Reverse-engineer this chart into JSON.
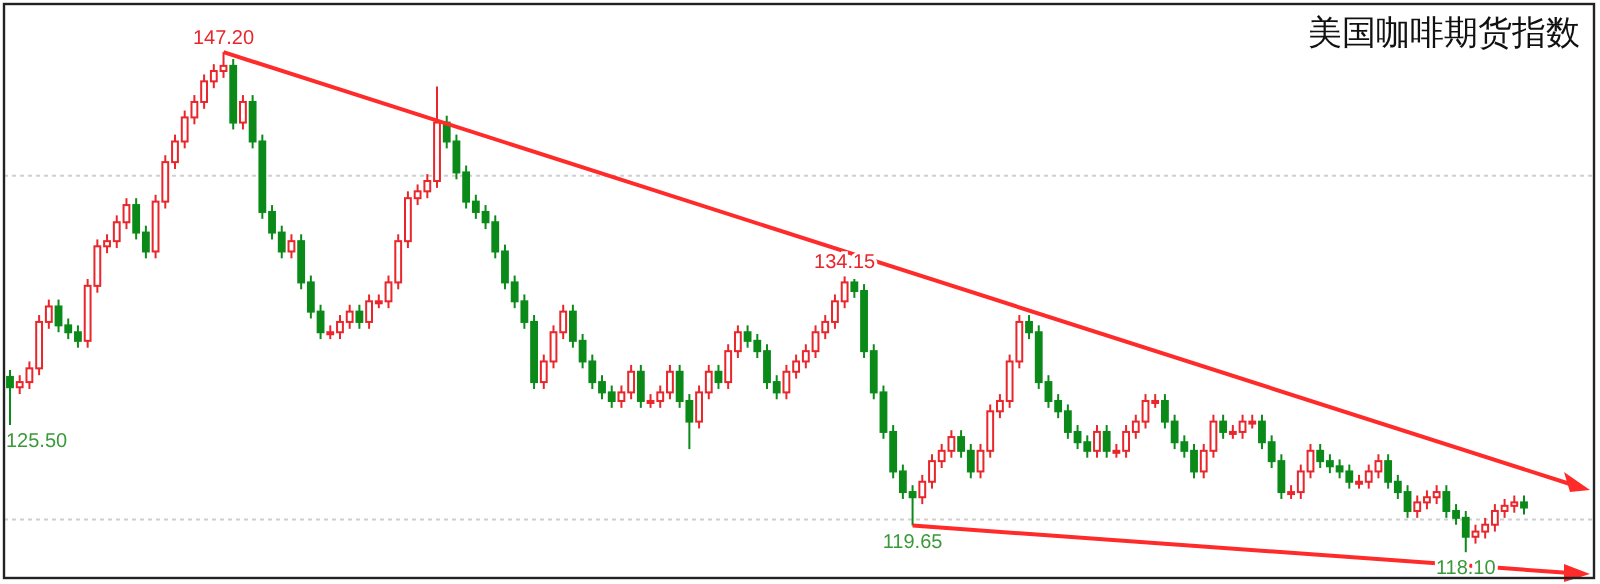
{
  "chart_data": {
    "type": "candlestick",
    "title": "美国咖啡期货指数",
    "categories": [
      null,
      null,
      null,
      null,
      null,
      null,
      null,
      null,
      null,
      null,
      null,
      null,
      null,
      null,
      null,
      null,
      null,
      null,
      null,
      null,
      null,
      null,
      null,
      null,
      null,
      null,
      null,
      null,
      null,
      null,
      null,
      null,
      null,
      null,
      null,
      null,
      null,
      null,
      null,
      null,
      null,
      null,
      null,
      null,
      null,
      null,
      null,
      null,
      null,
      null,
      null,
      null,
      null,
      null,
      null,
      null,
      null,
      null,
      null,
      null,
      null,
      null,
      null,
      null,
      null,
      null,
      null,
      null,
      null,
      null,
      null,
      null,
      null,
      null,
      null,
      null,
      null,
      null,
      null,
      null,
      null,
      null,
      null,
      null,
      null,
      null,
      null,
      null,
      null,
      null,
      null,
      null,
      null,
      null,
      null,
      null,
      null,
      null,
      null,
      null,
      null,
      null,
      null,
      null,
      null,
      null,
      null,
      null,
      null,
      null,
      null,
      null,
      null,
      null,
      null,
      null,
      null,
      null,
      null,
      null,
      null,
      null,
      null,
      null,
      null,
      null,
      null,
      null,
      null,
      null,
      null,
      null,
      null,
      null,
      null,
      null,
      null,
      null,
      null,
      null,
      null,
      null,
      null,
      null,
      null,
      null,
      null,
      null,
      null,
      null,
      null,
      null,
      null,
      null,
      null,
      null,
      null
    ],
    "ohlc": [
      [
        128.3,
        128.7,
        125.5,
        127.7
      ],
      [
        127.7,
        128.4,
        127.3,
        128.0
      ],
      [
        128.0,
        129.2,
        127.6,
        128.8
      ],
      [
        128.8,
        131.9,
        128.4,
        131.5
      ],
      [
        131.5,
        132.8,
        131.1,
        132.4
      ],
      [
        132.4,
        132.8,
        130.9,
        131.3
      ],
      [
        131.3,
        131.7,
        130.5,
        130.9
      ],
      [
        130.9,
        131.3,
        130.0,
        130.4
      ],
      [
        130.4,
        134.0,
        130.0,
        133.6
      ],
      [
        133.6,
        136.3,
        133.2,
        135.9
      ],
      [
        135.9,
        136.6,
        135.5,
        136.2
      ],
      [
        136.2,
        137.7,
        135.8,
        137.3
      ],
      [
        137.3,
        138.7,
        136.9,
        138.3
      ],
      [
        138.3,
        138.7,
        136.3,
        136.7
      ],
      [
        136.7,
        137.1,
        135.2,
        135.6
      ],
      [
        135.6,
        138.9,
        135.2,
        138.5
      ],
      [
        138.5,
        141.2,
        138.1,
        140.8
      ],
      [
        140.8,
        142.4,
        140.4,
        142.0
      ],
      [
        142.0,
        143.8,
        141.6,
        143.4
      ],
      [
        143.4,
        144.7,
        143.0,
        144.3
      ],
      [
        144.3,
        145.9,
        143.9,
        145.5
      ],
      [
        145.5,
        146.5,
        145.1,
        146.1
      ],
      [
        146.1,
        147.2,
        145.7,
        146.4
      ],
      [
        146.4,
        146.8,
        142.7,
        143.1
      ],
      [
        143.1,
        144.7,
        142.7,
        144.3
      ],
      [
        144.3,
        144.7,
        141.6,
        142.0
      ],
      [
        142.0,
        142.4,
        137.5,
        137.9
      ],
      [
        137.9,
        138.3,
        136.3,
        136.7
      ],
      [
        136.7,
        137.1,
        135.2,
        135.6
      ],
      [
        135.6,
        136.6,
        135.2,
        136.2
      ],
      [
        136.2,
        136.6,
        133.4,
        133.8
      ],
      [
        133.8,
        134.2,
        131.7,
        132.1
      ],
      [
        132.1,
        132.5,
        130.5,
        130.9
      ],
      [
        130.9,
        131.3,
        130.5,
        130.9
      ],
      [
        130.9,
        131.9,
        130.5,
        131.5
      ],
      [
        131.5,
        132.5,
        131.1,
        132.1
      ],
      [
        132.1,
        132.5,
        131.1,
        131.5
      ],
      [
        131.5,
        133.1,
        131.1,
        132.7
      ],
      [
        132.7,
        133.1,
        132.3,
        132.7
      ],
      [
        132.7,
        134.2,
        132.3,
        133.8
      ],
      [
        133.8,
        136.6,
        133.4,
        136.2
      ],
      [
        136.2,
        139.1,
        135.8,
        138.7
      ],
      [
        138.7,
        139.5,
        138.3,
        139.1
      ],
      [
        139.1,
        140.1,
        138.7,
        139.7
      ],
      [
        139.7,
        145.2,
        139.3,
        143.1
      ],
      [
        143.1,
        143.5,
        141.6,
        142.0
      ],
      [
        142.0,
        142.4,
        139.8,
        140.2
      ],
      [
        140.2,
        140.6,
        138.1,
        138.5
      ],
      [
        138.5,
        138.9,
        137.5,
        137.9
      ],
      [
        137.9,
        138.3,
        136.9,
        137.3
      ],
      [
        137.3,
        137.7,
        135.2,
        135.6
      ],
      [
        135.6,
        136.0,
        133.4,
        133.8
      ],
      [
        133.8,
        134.2,
        132.3,
        132.7
      ],
      [
        132.7,
        133.1,
        131.1,
        131.5
      ],
      [
        131.5,
        131.9,
        127.6,
        128.0
      ],
      [
        128.0,
        129.6,
        127.6,
        129.2
      ],
      [
        129.2,
        131.3,
        128.8,
        130.9
      ],
      [
        130.9,
        132.5,
        130.5,
        132.1
      ],
      [
        132.1,
        132.5,
        130.0,
        130.4
      ],
      [
        130.4,
        130.8,
        128.8,
        129.2
      ],
      [
        129.2,
        129.6,
        127.6,
        128.0
      ],
      [
        128.0,
        128.4,
        127.0,
        127.4
      ],
      [
        127.4,
        127.8,
        126.5,
        126.9
      ],
      [
        126.9,
        127.8,
        126.5,
        127.4
      ],
      [
        127.4,
        129.0,
        127.0,
        128.6
      ],
      [
        128.6,
        129.0,
        126.5,
        126.9
      ],
      [
        126.9,
        127.3,
        126.5,
        126.9
      ],
      [
        126.9,
        127.8,
        126.5,
        127.4
      ],
      [
        127.4,
        129.0,
        127.0,
        128.6
      ],
      [
        128.6,
        129.0,
        126.5,
        126.9
      ],
      [
        126.9,
        127.3,
        124.1,
        125.7
      ],
      [
        125.7,
        127.8,
        125.3,
        127.4
      ],
      [
        127.4,
        129.0,
        127.0,
        128.6
      ],
      [
        128.6,
        129.0,
        127.6,
        128.0
      ],
      [
        128.0,
        130.2,
        127.6,
        129.8
      ],
      [
        129.8,
        131.3,
        129.4,
        130.9
      ],
      [
        130.9,
        131.3,
        130.0,
        130.4
      ],
      [
        130.4,
        130.8,
        129.4,
        129.8
      ],
      [
        129.8,
        130.2,
        127.6,
        128.0
      ],
      [
        128.0,
        128.4,
        127.0,
        127.4
      ],
      [
        127.4,
        129.0,
        127.0,
        128.6
      ],
      [
        128.6,
        129.6,
        128.2,
        129.2
      ],
      [
        129.2,
        130.2,
        128.8,
        129.8
      ],
      [
        129.8,
        131.3,
        129.4,
        130.9
      ],
      [
        130.9,
        131.9,
        130.5,
        131.5
      ],
      [
        131.5,
        133.1,
        131.1,
        132.7
      ],
      [
        132.7,
        134.15,
        132.3,
        133.8
      ],
      [
        133.8,
        134.0,
        132.9,
        133.3
      ],
      [
        133.3,
        133.7,
        129.4,
        129.8
      ],
      [
        129.8,
        130.2,
        127.0,
        127.4
      ],
      [
        127.4,
        127.8,
        124.7,
        125.1
      ],
      [
        125.1,
        125.5,
        122.4,
        122.8
      ],
      [
        122.8,
        123.2,
        121.2,
        121.6
      ],
      [
        121.6,
        122.0,
        119.65,
        121.3
      ],
      [
        121.3,
        122.6,
        120.9,
        122.2
      ],
      [
        122.2,
        123.8,
        121.8,
        123.4
      ],
      [
        123.4,
        124.4,
        123.0,
        124.0
      ],
      [
        124.0,
        125.2,
        123.6,
        124.8
      ],
      [
        124.8,
        125.2,
        123.6,
        124.0
      ],
      [
        124.0,
        124.4,
        122.4,
        122.8
      ],
      [
        122.8,
        124.4,
        122.4,
        124.0
      ],
      [
        124.0,
        126.7,
        123.6,
        126.3
      ],
      [
        126.3,
        127.3,
        125.9,
        126.9
      ],
      [
        126.9,
        129.6,
        126.5,
        129.2
      ],
      [
        129.2,
        131.9,
        128.8,
        131.5
      ],
      [
        131.5,
        131.9,
        130.5,
        130.9
      ],
      [
        130.9,
        131.3,
        127.6,
        128.0
      ],
      [
        128.0,
        128.4,
        126.5,
        126.9
      ],
      [
        126.9,
        127.3,
        125.9,
        126.3
      ],
      [
        126.3,
        126.7,
        124.7,
        125.1
      ],
      [
        125.1,
        125.5,
        124.1,
        124.5
      ],
      [
        124.5,
        124.9,
        123.6,
        124.0
      ],
      [
        124.0,
        125.5,
        123.6,
        125.1
      ],
      [
        125.1,
        125.5,
        123.6,
        124.0
      ],
      [
        124.0,
        124.4,
        123.6,
        124.0
      ],
      [
        124.0,
        125.5,
        123.6,
        125.1
      ],
      [
        125.1,
        126.1,
        124.7,
        125.7
      ],
      [
        125.7,
        127.3,
        125.3,
        126.9
      ],
      [
        126.9,
        127.3,
        126.5,
        126.9
      ],
      [
        126.9,
        127.3,
        125.3,
        125.7
      ],
      [
        125.7,
        126.1,
        124.1,
        124.5
      ],
      [
        124.5,
        124.9,
        123.6,
        124.0
      ],
      [
        124.0,
        124.4,
        122.4,
        122.8
      ],
      [
        122.8,
        124.4,
        122.4,
        124.0
      ],
      [
        124.0,
        126.1,
        123.6,
        125.7
      ],
      [
        125.7,
        126.1,
        124.7,
        125.1
      ],
      [
        125.1,
        125.5,
        124.7,
        125.1
      ],
      [
        125.1,
        126.1,
        124.7,
        125.7
      ],
      [
        125.7,
        126.1,
        125.3,
        125.7
      ],
      [
        125.7,
        126.1,
        124.1,
        124.5
      ],
      [
        124.5,
        124.9,
        123.0,
        123.4
      ],
      [
        123.4,
        123.8,
        121.2,
        121.6
      ],
      [
        121.6,
        122.0,
        121.2,
        121.6
      ],
      [
        121.6,
        123.2,
        121.2,
        122.8
      ],
      [
        122.8,
        124.4,
        122.4,
        124.0
      ],
      [
        124.0,
        124.4,
        123.0,
        123.4
      ],
      [
        123.4,
        123.8,
        122.7,
        123.1
      ],
      [
        123.1,
        123.5,
        122.4,
        122.8
      ],
      [
        122.8,
        123.2,
        121.8,
        122.2
      ],
      [
        122.2,
        122.6,
        121.8,
        122.2
      ],
      [
        122.2,
        123.2,
        121.8,
        122.8
      ],
      [
        122.8,
        123.8,
        122.4,
        123.4
      ],
      [
        123.4,
        123.8,
        121.8,
        122.2
      ],
      [
        122.2,
        122.6,
        121.2,
        121.6
      ],
      [
        121.6,
        122.0,
        120.1,
        120.5
      ],
      [
        120.5,
        121.4,
        120.1,
        121.0
      ],
      [
        121.0,
        121.7,
        120.6,
        121.3
      ],
      [
        121.3,
        122.0,
        120.9,
        121.6
      ],
      [
        121.6,
        122.0,
        120.1,
        120.5
      ],
      [
        120.5,
        120.9,
        119.7,
        120.1
      ],
      [
        120.1,
        120.5,
        118.1,
        119.0
      ],
      [
        119.0,
        119.7,
        118.6,
        119.3
      ],
      [
        119.3,
        120.1,
        118.9,
        119.7
      ],
      [
        119.7,
        120.9,
        119.3,
        120.5
      ],
      [
        120.5,
        121.2,
        120.1,
        120.8
      ],
      [
        120.8,
        121.4,
        120.4,
        121.0
      ],
      [
        121.0,
        121.4,
        120.3,
        120.7
      ]
    ],
    "colors": [
      "#0b8a1a",
      "#e8262b",
      "#e8262b",
      "#e8262b",
      "#e8262b",
      "#0b8a1a",
      "#0b8a1a",
      "#0b8a1a",
      "#e8262b",
      "#e8262b",
      "#e8262b",
      "#e8262b",
      "#e8262b",
      "#0b8a1a",
      "#0b8a1a",
      "#e8262b",
      "#e8262b",
      "#e8262b",
      "#e8262b",
      "#e8262b",
      "#e8262b",
      "#e8262b",
      "#e8262b",
      "#0b8a1a",
      "#e8262b",
      "#0b8a1a",
      "#0b8a1a",
      "#0b8a1a",
      "#0b8a1a",
      "#e8262b",
      "#0b8a1a",
      "#0b8a1a",
      "#0b8a1a",
      "#e8262b",
      "#e8262b",
      "#e8262b",
      "#0b8a1a",
      "#e8262b",
      "#e8262b",
      "#e8262b",
      "#e8262b",
      "#e8262b",
      "#e8262b",
      "#e8262b",
      "#e8262b",
      "#0b8a1a",
      "#0b8a1a",
      "#0b8a1a",
      "#0b8a1a",
      "#0b8a1a",
      "#0b8a1a",
      "#0b8a1a",
      "#0b8a1a",
      "#0b8a1a",
      "#0b8a1a",
      "#e8262b",
      "#e8262b",
      "#e8262b",
      "#0b8a1a",
      "#0b8a1a",
      "#0b8a1a",
      "#0b8a1a",
      "#0b8a1a",
      "#e8262b",
      "#e8262b",
      "#0b8a1a",
      "#e8262b",
      "#e8262b",
      "#e8262b",
      "#0b8a1a",
      "#0b8a1a",
      "#e8262b",
      "#e8262b",
      "#0b8a1a",
      "#e8262b",
      "#e8262b",
      "#0b8a1a",
      "#0b8a1a",
      "#0b8a1a",
      "#0b8a1a",
      "#e8262b",
      "#e8262b",
      "#e8262b",
      "#e8262b",
      "#e8262b",
      "#e8262b",
      "#e8262b",
      "#0b8a1a",
      "#0b8a1a",
      "#0b8a1a",
      "#0b8a1a",
      "#0b8a1a",
      "#0b8a1a",
      "#0b8a1a",
      "#e8262b",
      "#e8262b",
      "#e8262b",
      "#e8262b",
      "#0b8a1a",
      "#0b8a1a",
      "#e8262b",
      "#e8262b",
      "#e8262b",
      "#e8262b",
      "#e8262b",
      "#0b8a1a",
      "#0b8a1a",
      "#0b8a1a",
      "#0b8a1a",
      "#0b8a1a",
      "#0b8a1a",
      "#0b8a1a",
      "#e8262b",
      "#0b8a1a",
      "#e8262b",
      "#e8262b",
      "#e8262b",
      "#e8262b",
      "#e8262b",
      "#0b8a1a",
      "#0b8a1a",
      "#0b8a1a",
      "#0b8a1a",
      "#e8262b",
      "#e8262b",
      "#0b8a1a",
      "#e8262b",
      "#e8262b",
      "#e8262b",
      "#0b8a1a",
      "#0b8a1a",
      "#0b8a1a",
      "#e8262b",
      "#e8262b",
      "#e8262b",
      "#0b8a1a",
      "#0b8a1a",
      "#0b8a1a",
      "#0b8a1a",
      "#e8262b",
      "#e8262b",
      "#e8262b",
      "#0b8a1a",
      "#0b8a1a",
      "#0b8a1a",
      "#e8262b",
      "#e8262b",
      "#e8262b",
      "#0b8a1a",
      "#0b8a1a",
      "#0b8a1a",
      "#e8262b",
      "#e8262b",
      "#e8262b",
      "#e8262b",
      "#e8262b",
      "#0b8a1a"
    ],
    "ylim": [
      116.6,
      150
    ],
    "yticks": [
      {
        "value": 120,
        "label": null
      },
      {
        "value": 140,
        "label": null
      }
    ],
    "grid": "y",
    "annotations": [
      {
        "text": "147.20",
        "y": 147.2
      },
      {
        "text": "134.15",
        "y": 134.15
      },
      "125.50",
      {
        "text": "119.65",
        "y": 119.65
      },
      {
        "text": "118.10",
        "y": 118.1
      }
    ]
  }
}
